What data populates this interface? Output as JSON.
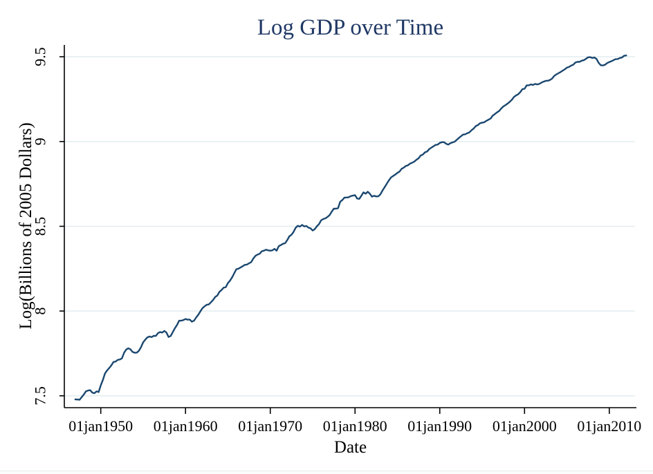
{
  "page": {
    "background": "#ffffff"
  },
  "chart_data": {
    "type": "line",
    "title": "Log GDP over Time",
    "xlabel": "Date",
    "ylabel": "Log(Billions of 2005 Dollars)",
    "legend": "none",
    "grid": "horizontal",
    "xlim": [
      1945.7,
      2013.2
    ],
    "ylim": [
      7.43,
      9.57
    ],
    "x_ticks": [
      {
        "value": 1950,
        "label": "01jan1950"
      },
      {
        "value": 1960,
        "label": "01jan1960"
      },
      {
        "value": 1970,
        "label": "01jan1970"
      },
      {
        "value": 1980,
        "label": "01jan1980"
      },
      {
        "value": 1990,
        "label": "01jan1990"
      },
      {
        "value": 2000,
        "label": "01jan2000"
      },
      {
        "value": 2010,
        "label": "01jan2010"
      }
    ],
    "y_ticks": [
      {
        "value": 7.5,
        "label": "7.5"
      },
      {
        "value": 8.0,
        "label": "8"
      },
      {
        "value": 8.5,
        "label": "8.5"
      },
      {
        "value": 9.0,
        "label": "9"
      },
      {
        "value": 9.5,
        "label": "9.5"
      }
    ],
    "series": [
      {
        "name": "Log GDP",
        "x_unit": "decimal year, quarterly",
        "x_start": 1947.0,
        "x_step": 0.25,
        "values": [
          7.479,
          7.478,
          7.477,
          7.492,
          7.508,
          7.526,
          7.531,
          7.533,
          7.519,
          7.515,
          7.526,
          7.522,
          7.562,
          7.593,
          7.632,
          7.65,
          7.664,
          7.68,
          7.7,
          7.702,
          7.712,
          7.714,
          7.721,
          7.754,
          7.773,
          7.78,
          7.774,
          7.759,
          7.754,
          7.755,
          7.766,
          7.787,
          7.815,
          7.831,
          7.845,
          7.85,
          7.846,
          7.854,
          7.853,
          7.87,
          7.876,
          7.873,
          7.883,
          7.873,
          7.847,
          7.853,
          7.876,
          7.899,
          7.918,
          7.943,
          7.943,
          7.947,
          7.953,
          7.949,
          7.95,
          7.937,
          7.943,
          7.962,
          7.978,
          7.998,
          8.017,
          8.028,
          8.037,
          8.039,
          8.052,
          8.065,
          8.083,
          8.091,
          8.113,
          8.124,
          8.138,
          8.141,
          8.165,
          8.179,
          8.199,
          8.223,
          8.247,
          8.25,
          8.257,
          8.265,
          8.273,
          8.274,
          8.282,
          8.289,
          8.31,
          8.326,
          8.333,
          8.338,
          8.353,
          8.356,
          8.362,
          8.358,
          8.356,
          8.358,
          8.367,
          8.356,
          8.383,
          8.389,
          8.397,
          8.4,
          8.418,
          8.441,
          8.45,
          8.467,
          8.492,
          8.503,
          8.498,
          8.508,
          8.499,
          8.502,
          8.492,
          8.488,
          8.475,
          8.483,
          8.5,
          8.513,
          8.535,
          8.543,
          8.547,
          8.555,
          8.566,
          8.586,
          8.604,
          8.604,
          8.607,
          8.645,
          8.655,
          8.669,
          8.67,
          8.671,
          8.678,
          8.681,
          8.684,
          8.664,
          8.662,
          8.68,
          8.7,
          8.692,
          8.704,
          8.692,
          8.675,
          8.68,
          8.676,
          8.677,
          8.689,
          8.712,
          8.731,
          8.751,
          8.771,
          8.788,
          8.797,
          8.805,
          8.815,
          8.823,
          8.839,
          8.846,
          8.856,
          8.86,
          8.87,
          8.875,
          8.882,
          8.893,
          8.901,
          8.918,
          8.923,
          8.936,
          8.941,
          8.955,
          8.964,
          8.972,
          8.98,
          8.982,
          8.992,
          8.996,
          8.996,
          8.987,
          8.982,
          8.99,
          8.995,
          8.999,
          9.01,
          9.021,
          9.031,
          9.041,
          9.043,
          9.049,
          9.054,
          9.067,
          9.077,
          9.091,
          9.097,
          9.108,
          9.111,
          9.114,
          9.122,
          9.129,
          9.136,
          9.153,
          9.162,
          9.172,
          9.18,
          9.195,
          9.207,
          9.215,
          9.224,
          9.234,
          9.246,
          9.263,
          9.272,
          9.279,
          9.291,
          9.309,
          9.311,
          9.331,
          9.332,
          9.337,
          9.334,
          9.34,
          9.337,
          9.34,
          9.348,
          9.353,
          9.358,
          9.359,
          9.363,
          9.371,
          9.387,
          9.396,
          9.403,
          9.41,
          9.418,
          9.426,
          9.436,
          9.44,
          9.448,
          9.453,
          9.466,
          9.47,
          9.47,
          9.477,
          9.48,
          9.488,
          9.497,
          9.498,
          9.493,
          9.496,
          9.487,
          9.464,
          9.45,
          9.449,
          9.453,
          9.463,
          9.469,
          9.474,
          9.48,
          9.486,
          9.487,
          9.493,
          9.496,
          9.506,
          9.508
        ]
      }
    ],
    "colors": {
      "line": "#1a476f",
      "title": "#1f3864",
      "grid": "#e4eef0",
      "axis": "#000000",
      "text": "#000000"
    }
  }
}
